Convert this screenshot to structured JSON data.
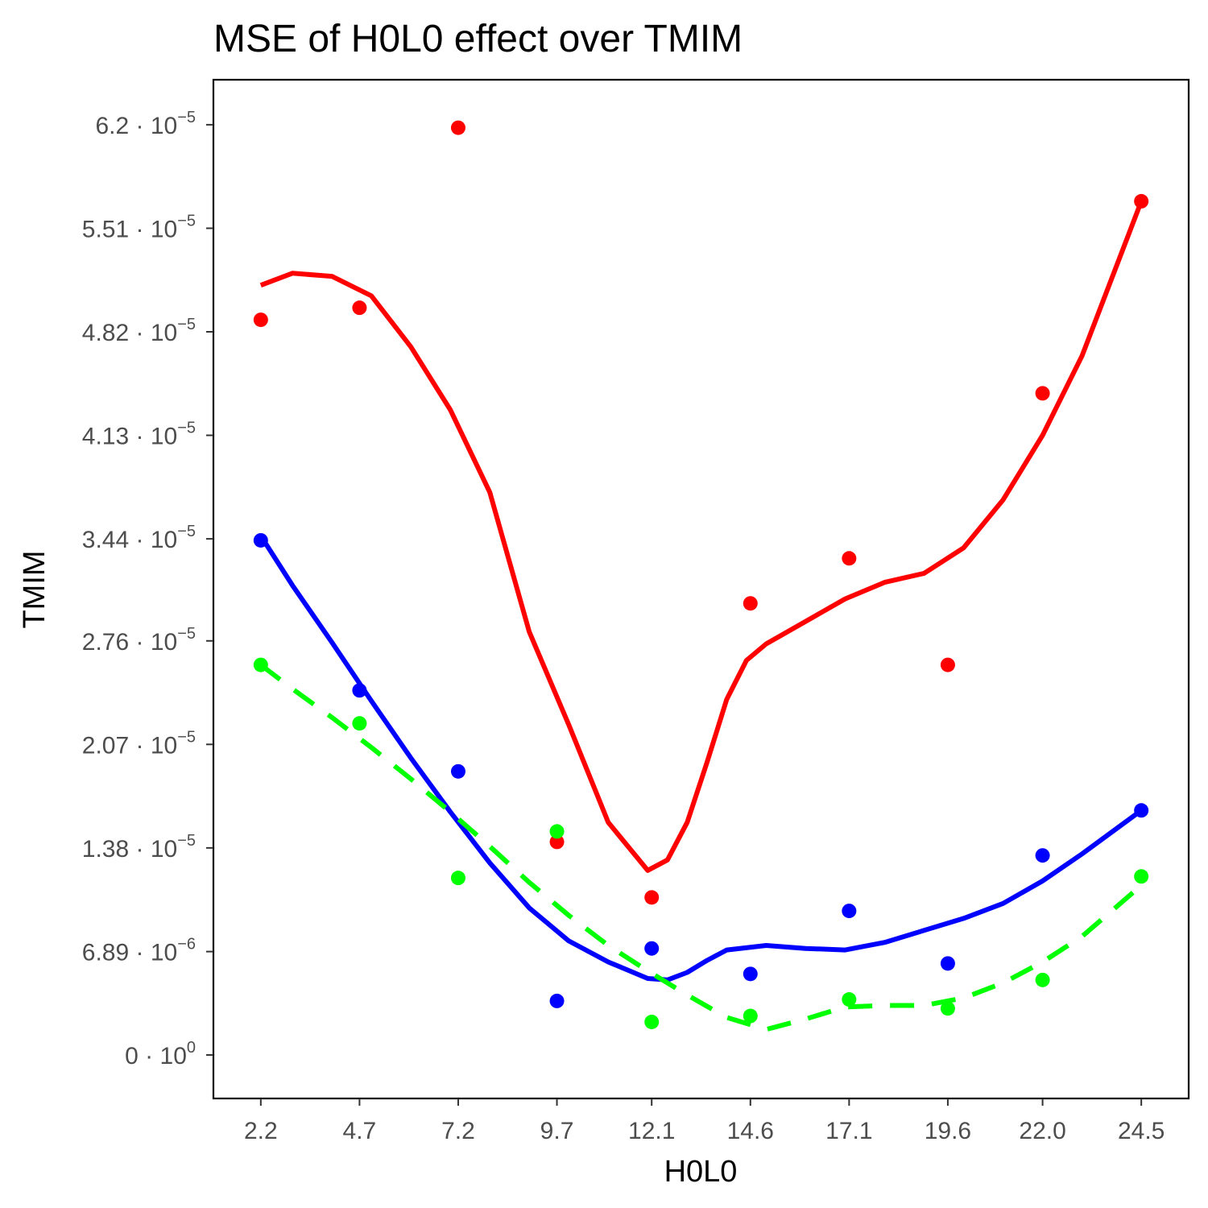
{
  "chart_data": {
    "type": "scatter",
    "title": "MSE of H0L0 effect over  TMIM",
    "xlabel": "H0L0",
    "ylabel": "TMIM",
    "x_ticks": [
      "2.2",
      "4.7",
      "7.2",
      "9.7",
      "12.1",
      "14.6",
      "17.1",
      "19.6",
      "22.0",
      "24.5"
    ],
    "y_ticks": [
      {
        "value": 0,
        "mantissa": "0",
        "exponent": "0"
      },
      {
        "value": 6.89e-06,
        "mantissa": "6.89",
        "exponent": "−6"
      },
      {
        "value": 1.38e-05,
        "mantissa": "1.38",
        "exponent": "−5"
      },
      {
        "value": 2.07e-05,
        "mantissa": "2.07",
        "exponent": "−5"
      },
      {
        "value": 2.76e-05,
        "mantissa": "2.76",
        "exponent": "−5"
      },
      {
        "value": 3.44e-05,
        "mantissa": "3.44",
        "exponent": "−5"
      },
      {
        "value": 4.13e-05,
        "mantissa": "4.13",
        "exponent": "−5"
      },
      {
        "value": 4.82e-05,
        "mantissa": "4.82",
        "exponent": "−5"
      },
      {
        "value": 5.51e-05,
        "mantissa": "5.51",
        "exponent": "−5"
      },
      {
        "value": 6.2e-05,
        "mantissa": "6.2",
        "exponent": "−5"
      }
    ],
    "xlim": [
      1.0,
      25.7
    ],
    "ylim": [
      -2.9e-06,
      6.5e-05
    ],
    "grid": false,
    "series": [
      {
        "color": "#ff0000",
        "dash": "solid",
        "x": [
          2.2,
          4.7,
          7.2,
          9.7,
          12.1,
          14.6,
          17.1,
          19.6,
          22.0,
          24.5
        ],
        "points": [
          4.9e-05,
          4.98e-05,
          6.18e-05,
          1.42e-05,
          1.05e-05,
          3.01e-05,
          3.31e-05,
          2.6e-05,
          4.41e-05,
          5.69e-05
        ],
        "curve": [
          [
            2.2,
            5.13e-05
          ],
          [
            3.0,
            5.21e-05
          ],
          [
            4.0,
            5.19e-05
          ],
          [
            5.0,
            5.06e-05
          ],
          [
            6.0,
            4.72e-05
          ],
          [
            7.0,
            4.3e-05
          ],
          [
            8.0,
            3.75e-05
          ],
          [
            9.0,
            2.82e-05
          ],
          [
            10.0,
            2.2e-05
          ],
          [
            11.0,
            1.55e-05
          ],
          [
            12.0,
            1.23e-05
          ],
          [
            12.5,
            1.3e-05
          ],
          [
            13.0,
            1.55e-05
          ],
          [
            13.5,
            1.95e-05
          ],
          [
            14.0,
            2.37e-05
          ],
          [
            14.5,
            2.63e-05
          ],
          [
            15.0,
            2.74e-05
          ],
          [
            16.0,
            2.89e-05
          ],
          [
            17.0,
            3.04e-05
          ],
          [
            18.0,
            3.15e-05
          ],
          [
            19.0,
            3.21e-05
          ],
          [
            20.0,
            3.38e-05
          ],
          [
            21.0,
            3.7e-05
          ],
          [
            22.0,
            4.13e-05
          ],
          [
            23.0,
            4.66e-05
          ],
          [
            24.5,
            5.69e-05
          ]
        ]
      },
      {
        "color": "#0000ff",
        "dash": "solid",
        "x": [
          2.2,
          4.7,
          7.2,
          9.7,
          12.1,
          14.6,
          17.1,
          19.6,
          22.0,
          24.5
        ],
        "points": [
          3.43e-05,
          2.43e-05,
          1.89e-05,
          3.6e-06,
          7.1e-06,
          5.4e-06,
          9.6e-06,
          6.1e-06,
          1.33e-05,
          1.63e-05
        ],
        "curve": [
          [
            2.2,
            3.46e-05
          ],
          [
            3.0,
            3.13e-05
          ],
          [
            4.0,
            2.75e-05
          ],
          [
            5.0,
            2.36e-05
          ],
          [
            6.0,
            1.98e-05
          ],
          [
            7.0,
            1.62e-05
          ],
          [
            8.0,
            1.28e-05
          ],
          [
            9.0,
            9.8e-06
          ],
          [
            10.0,
            7.6e-06
          ],
          [
            11.0,
            6.2e-06
          ],
          [
            12.0,
            5.1e-06
          ],
          [
            12.5,
            5e-06
          ],
          [
            13.0,
            5.5e-06
          ],
          [
            13.5,
            6.3e-06
          ],
          [
            14.0,
            7e-06
          ],
          [
            15.0,
            7.3e-06
          ],
          [
            16.0,
            7.1e-06
          ],
          [
            17.0,
            7e-06
          ],
          [
            18.0,
            7.5e-06
          ],
          [
            19.0,
            8.3e-06
          ],
          [
            20.0,
            9.1e-06
          ],
          [
            21.0,
            1.01e-05
          ],
          [
            22.0,
            1.16e-05
          ],
          [
            23.0,
            1.34e-05
          ],
          [
            24.5,
            1.63e-05
          ]
        ]
      },
      {
        "color": "#00ff00",
        "dash": "dashed",
        "x": [
          2.2,
          4.7,
          7.2,
          9.7,
          12.1,
          14.6,
          17.1,
          19.6,
          22.0,
          24.5
        ],
        "points": [
          2.6e-05,
          2.21e-05,
          1.18e-05,
          1.49e-05,
          2.2e-06,
          2.6e-06,
          3.7e-06,
          3.1e-06,
          5e-06,
          1.19e-05
        ],
        "curve": [
          [
            2.2,
            2.6e-05
          ],
          [
            3.0,
            2.44e-05
          ],
          [
            4.0,
            2.25e-05
          ],
          [
            5.0,
            2.05e-05
          ],
          [
            6.0,
            1.84e-05
          ],
          [
            7.0,
            1.62e-05
          ],
          [
            8.0,
            1.39e-05
          ],
          [
            9.0,
            1.15e-05
          ],
          [
            10.0,
            9.3e-06
          ],
          [
            11.0,
            7.3e-06
          ],
          [
            12.0,
            5.6e-06
          ],
          [
            13.0,
            4e-06
          ],
          [
            14.0,
            2.5e-06
          ],
          [
            15.0,
            1.7e-06
          ],
          [
            16.0,
            2.4e-06
          ],
          [
            17.0,
            3.2e-06
          ],
          [
            18.0,
            3.3e-06
          ],
          [
            19.0,
            3.3e-06
          ],
          [
            20.0,
            3.8e-06
          ],
          [
            21.0,
            4.8e-06
          ],
          [
            22.0,
            6.2e-06
          ],
          [
            23.0,
            7.9e-06
          ],
          [
            24.5,
            1.13e-05
          ]
        ]
      }
    ]
  }
}
